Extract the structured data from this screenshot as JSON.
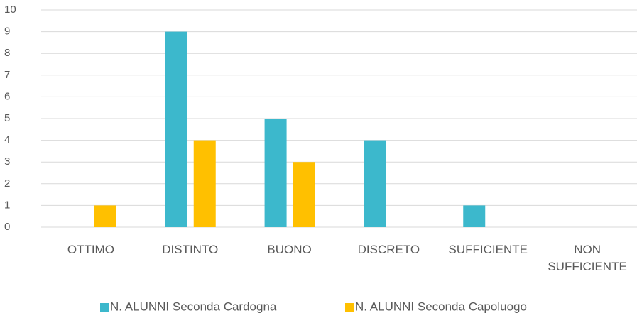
{
  "chart_data": {
    "type": "bar",
    "categories": [
      "OTTIMO",
      "DISTINTO",
      "BUONO",
      "DISCRETO",
      "SUFFICIENTE",
      "NON SUFFICIENTE"
    ],
    "series": [
      {
        "name": "N. ALUNNI Seconda Cardogna",
        "color": "#3cb8cc",
        "values": [
          0,
          9,
          5,
          4,
          1,
          0
        ]
      },
      {
        "name": "N. ALUNNI Seconda Capoluogo",
        "color": "#ffc000",
        "values": [
          1,
          4,
          3,
          0,
          0,
          0
        ]
      }
    ],
    "ylim": [
      0,
      10
    ],
    "yticks": [
      0,
      1,
      2,
      3,
      4,
      5,
      6,
      7,
      8,
      9,
      10
    ],
    "grid": true,
    "legend": "bottom"
  }
}
